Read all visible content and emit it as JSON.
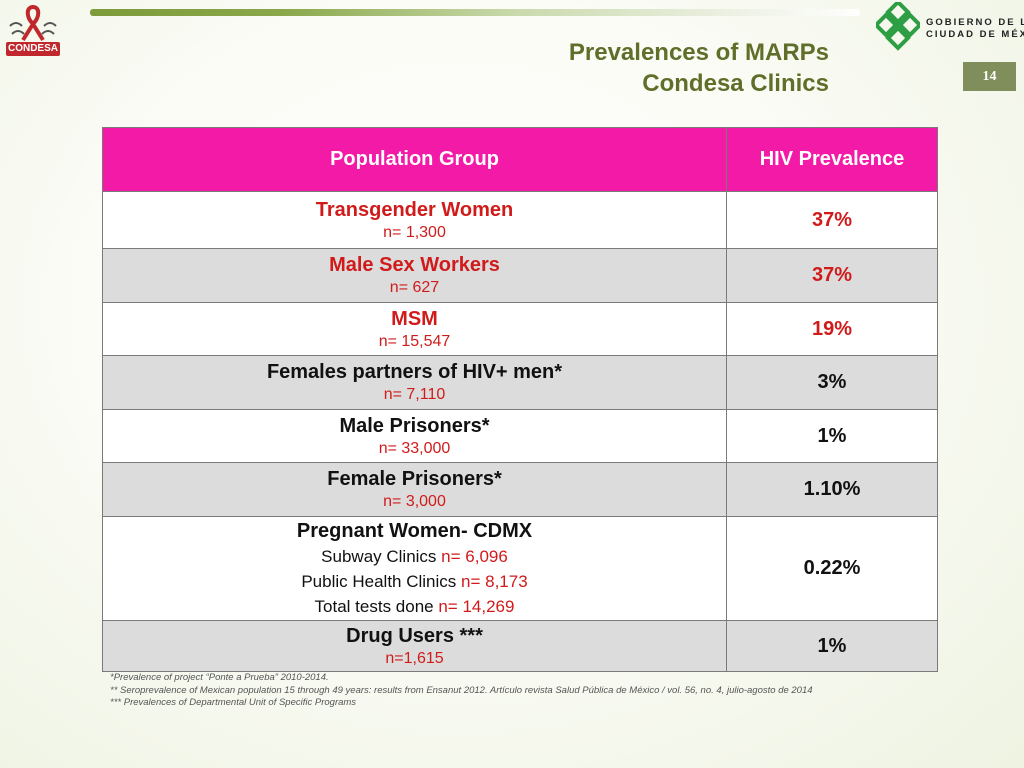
{
  "header": {
    "left_logo_text": "CONDESA",
    "right_logo_line1": "GOBIERNO DE LA",
    "right_logo_line2": "CIUDAD DE MÉXICO",
    "title_line1": "Prevalences of MARPs",
    "title_line2": "Condesa Clinics",
    "page_number": "14"
  },
  "colors": {
    "header_pink": "#f21aa6",
    "accent_red": "#d11b1b",
    "title_olive": "#5f6f2a",
    "badge": "#7f8e5a"
  },
  "table": {
    "columns": [
      "Population Group",
      "HIV Prevalence"
    ],
    "rows": [
      {
        "group": "Transgender Women",
        "n": "n= 1,300",
        "prevalence": "37%"
      },
      {
        "group": "Male Sex Workers",
        "n": "n= 627",
        "prevalence": "37%"
      },
      {
        "group": "MSM",
        "n": "n= 15,547",
        "prevalence": "19%"
      },
      {
        "group": "Females partners of HIV+ men*",
        "n": "n= 7,110",
        "prevalence": "3%"
      },
      {
        "group": "Male Prisoners*",
        "n": "n= 33,000",
        "prevalence": "1%"
      },
      {
        "group": "Female Prisoners*",
        "n": "n= 3,000",
        "prevalence": "1.10%"
      },
      {
        "group": "Pregnant Women- CDMX",
        "sublines": [
          {
            "label": "Subway Clinics ",
            "n": "n= 6,096"
          },
          {
            "label": "Public Health Clinics ",
            "n": "n= 8,173"
          },
          {
            "label": "Total tests done ",
            "n": "n= 14,269"
          }
        ],
        "prevalence": "0.22%"
      },
      {
        "group": "Drug Users ***",
        "n": "n=1,615",
        "prevalence": "1%"
      }
    ]
  },
  "footnotes": [
    "*Prevalence of project “Ponte a Prueba” 2010-2014.",
    "** Seroprevalence of Mexican population 15 through 49 years: results from Ensanut 2012. Artículo revista Salud Pública de México / vol. 56, no. 4, julio-agosto de 2014",
    "*** Prevalences of Departmental Unit of Specific Programs"
  ]
}
